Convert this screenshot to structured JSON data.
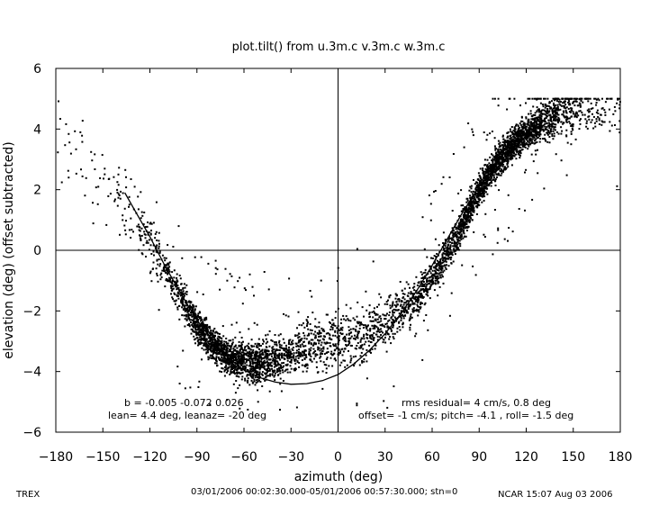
{
  "chart_data": {
    "type": "scatter",
    "title": "plot.tilt() from u.3m.c v.3m.c w.3m.c",
    "xlabel": "azimuth (deg)",
    "ylabel": "elevation (deg)  (offset subtracted)",
    "xlim": [
      -180,
      180
    ],
    "ylim": [
      -6,
      6
    ],
    "x_ticks": [
      -180,
      -150,
      -120,
      -90,
      -60,
      -30,
      0,
      30,
      60,
      90,
      120,
      150,
      180
    ],
    "y_ticks": [
      -6,
      -4,
      -2,
      0,
      2,
      4,
      6
    ],
    "grid": false,
    "zero_lines": true,
    "fit_curve": {
      "x": [
        -136,
        -130,
        -120,
        -110,
        -100,
        -90,
        -80,
        -70,
        -60,
        -50,
        -40,
        -30,
        -20,
        -10,
        0,
        10,
        20,
        30,
        40,
        50,
        60,
        70,
        80,
        90
      ],
      "y": [
        1.9,
        1.35,
        0.45,
        -0.55,
        -1.45,
        -2.3,
        -3.0,
        -3.55,
        -3.95,
        -4.2,
        -4.35,
        -4.42,
        -4.4,
        -4.3,
        -4.1,
        -3.75,
        -3.3,
        -2.75,
        -2.1,
        -1.35,
        -0.5,
        0.4,
        1.3,
        2.1
      ]
    },
    "scatter_bands": {
      "x": [
        -180,
        -170,
        -160,
        -150,
        -140,
        -130,
        -120,
        -110,
        -100,
        -90,
        -80,
        -70,
        -60,
        -50,
        -40,
        -30,
        -20,
        -10,
        0,
        10,
        20,
        30,
        40,
        50,
        60,
        70,
        80,
        90,
        100,
        110,
        120,
        130,
        140,
        150,
        160,
        170,
        180
      ],
      "center": [
        4.0,
        3.3,
        2.8,
        2.2,
        1.7,
        1.2,
        0.3,
        -0.6,
        -1.6,
        -2.5,
        -3.1,
        -3.5,
        -3.7,
        -3.7,
        -3.6,
        -3.4,
        -3.2,
        -3.1,
        -3.0,
        -2.9,
        -2.7,
        -2.4,
        -2.0,
        -1.5,
        -0.9,
        -0.1,
        0.9,
        2.0,
        2.8,
        3.4,
        3.9,
        4.2,
        4.5,
        4.6,
        4.7,
        4.7,
        4.7
      ],
      "spread": [
        0.7,
        0.9,
        0.9,
        0.9,
        0.8,
        0.7,
        0.6,
        0.5,
        0.45,
        0.4,
        0.4,
        0.4,
        0.45,
        0.5,
        0.5,
        0.5,
        0.55,
        0.6,
        0.6,
        0.6,
        0.6,
        0.55,
        0.5,
        0.5,
        0.45,
        0.4,
        0.4,
        0.35,
        0.35,
        0.35,
        0.4,
        0.45,
        0.5,
        0.6,
        0.6,
        0.6,
        0.6
      ],
      "density": [
        1,
        1,
        1,
        1,
        2,
        3,
        5,
        8,
        12,
        22,
        26,
        26,
        24,
        20,
        16,
        12,
        10,
        9,
        8,
        8,
        8,
        9,
        10,
        12,
        14,
        16,
        20,
        26,
        30,
        30,
        28,
        22,
        14,
        7,
        4,
        3,
        2
      ],
      "cap": 5
    },
    "annotations": {
      "left_line1": "b = -0.005 -0.072  0.026",
      "left_line2": "lean= 4.4 deg, leanaz= -20 deg",
      "right_line1": "rms residual= 4 cm/s, 0.8 deg",
      "right_line2": "offset= -1 cm/s; pitch= -4.1 , roll= -1.5 deg"
    }
  },
  "footer": {
    "left": "TREX",
    "center": "03/01/2006 00:02:30.000-05/01/2006 00:57:30.000; stn=0",
    "right": "NCAR 15:07 Aug 03 2006"
  }
}
